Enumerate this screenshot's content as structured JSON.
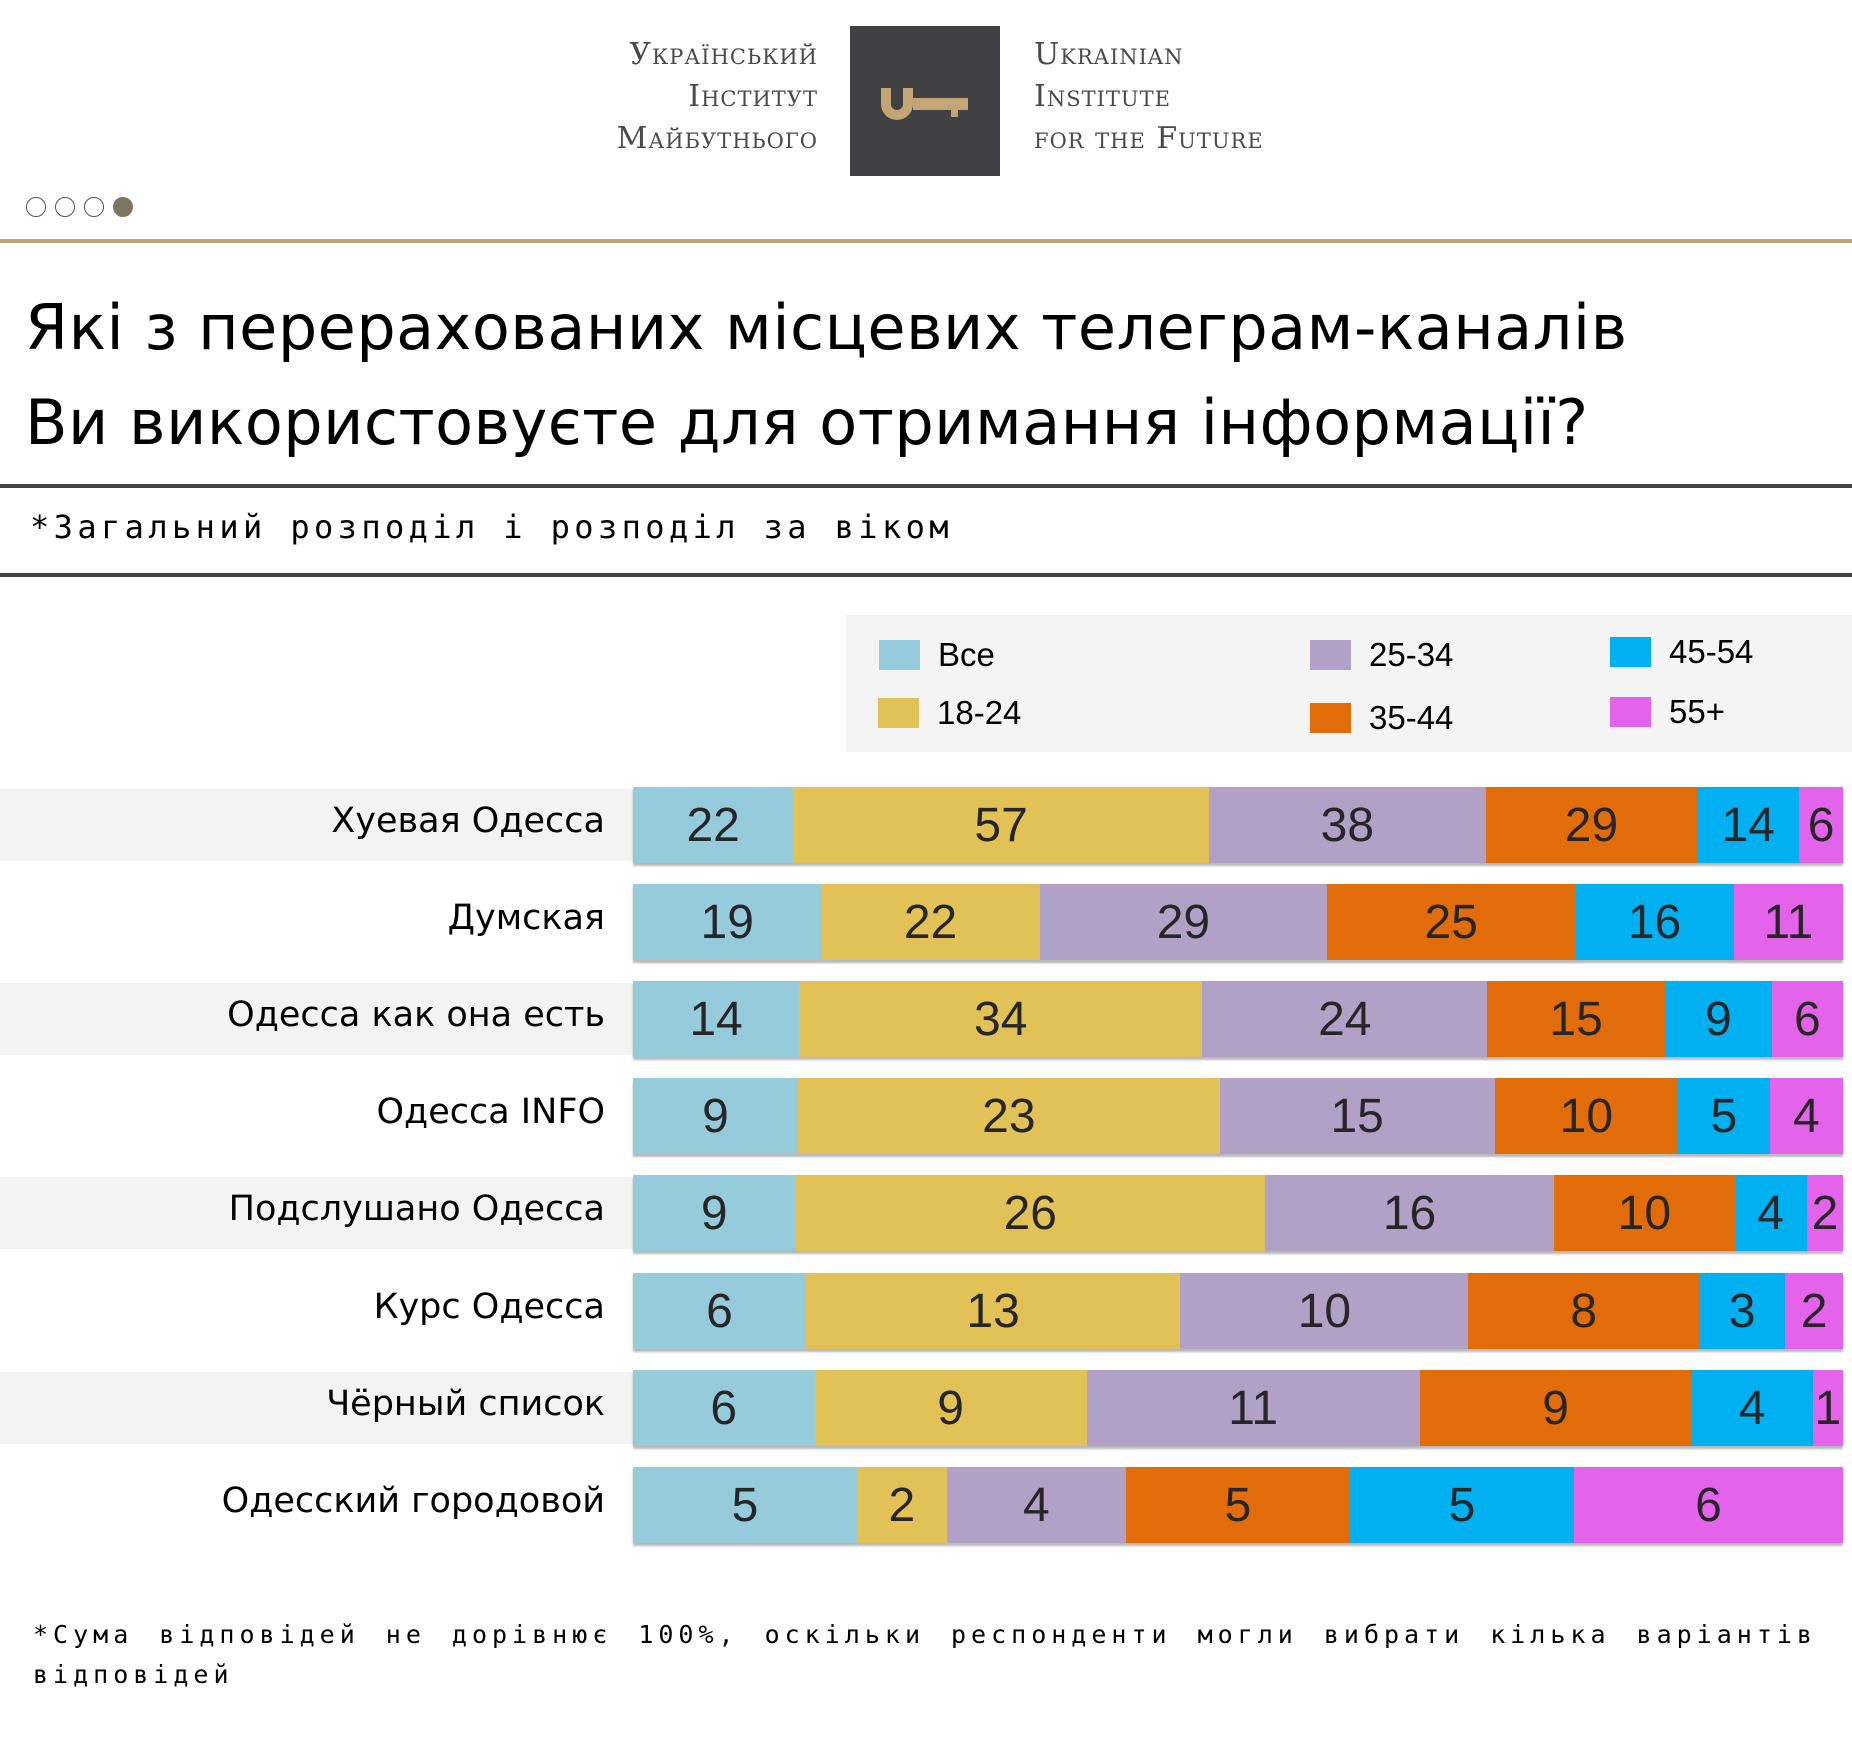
{
  "header": {
    "logo_left_lines": [
      "Український",
      "Інститут",
      "Майбутнього"
    ],
    "logo_right_lines": [
      "Ukrainian",
      "Institute",
      "for the Future"
    ],
    "logo_icon": "key-icon",
    "logo_colors": {
      "box": "#414042",
      "key": "#c2a572",
      "text": "#4a4a4a"
    }
  },
  "pager": {
    "count": 4,
    "active_index": 3
  },
  "title_lines": [
    "Які з перерахованих місцевих телеграм-каналів",
    "Ви використовуєте для отримання інформації?"
  ],
  "subtitle": "*Загальний розподіл і розподіл за віком",
  "footnote": "*Сума відповідей не дорівнює 100%, оскільки респонденти могли вибрати кілька варіантів відповідей",
  "chart_data": {
    "type": "bar",
    "orientation": "horizontal",
    "stacked": true,
    "title": "Які з перерахованих місцевих телеграм-каналів Ви використовуєте для отримання інформації?",
    "subtitle": "*Загальний розподіл і розподіл за віком",
    "xlabel": "",
    "ylabel": "",
    "legend_position": "top-right",
    "grid": false,
    "unit": "%",
    "categories": [
      "Хуевая Одесса",
      "Думская",
      "Одесса как она есть",
      "Одесса INFO",
      "Подслушано Одесса",
      "Курс Одесса",
      "Чёрный список",
      "Одесский городовой"
    ],
    "series": [
      {
        "name": "Все",
        "color": "#96cbdc",
        "values": [
          22,
          19,
          14,
          9,
          9,
          6,
          6,
          5
        ]
      },
      {
        "name": "18-24",
        "color": "#e2c156",
        "values": [
          57,
          22,
          34,
          23,
          26,
          13,
          9,
          2
        ]
      },
      {
        "name": "25-34",
        "color": "#b2a1c7",
        "values": [
          38,
          29,
          24,
          15,
          16,
          10,
          11,
          4
        ]
      },
      {
        "name": "35-44",
        "color": "#e36c0a",
        "values": [
          29,
          25,
          15,
          10,
          10,
          8,
          9,
          5
        ]
      },
      {
        "name": "45-54",
        "color": "#00b0f0",
        "values": [
          14,
          16,
          9,
          5,
          4,
          3,
          4,
          5
        ]
      },
      {
        "name": "55+",
        "color": "#e363eb",
        "values": [
          6,
          11,
          6,
          4,
          2,
          2,
          1,
          6
        ]
      }
    ],
    "row_band_shaded": [
      true,
      false,
      true,
      false,
      true,
      false,
      true,
      false
    ]
  }
}
